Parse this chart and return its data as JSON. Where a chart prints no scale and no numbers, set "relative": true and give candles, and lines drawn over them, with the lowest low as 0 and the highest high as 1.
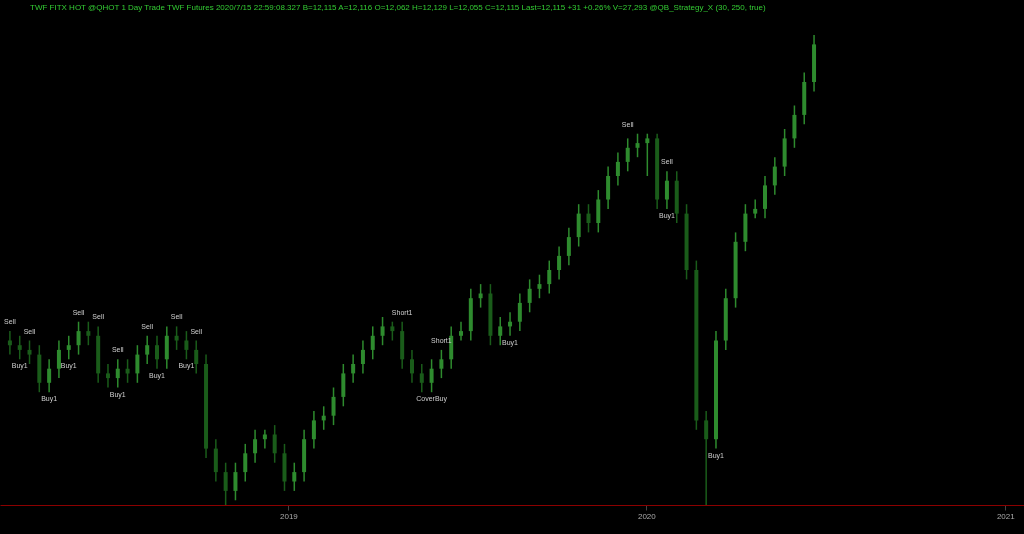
{
  "chart_data": {
    "type": "candlestick",
    "relative": true,
    "title": "TWF FITX HOT  @QHOT  1 Day  Trade  TWF  Futures  2020/7/15 22:59:08.327  B=12,115  A=12,116  O=12,062  H=12,129  L=12,055  C=12,115  Last=12,115  +31  +0.26%  V=27,293  @QB_Strategy_X (30, 250, true)",
    "colors": [
      "#1a5c1a",
      "#1a5c1a",
      "#1a5c1a",
      "#1a5c1a",
      "#2e8b2e",
      "#2e8b2e",
      "#2e8b2e",
      "#2e8b2e",
      "#1a5c1a",
      "#1a5c1a",
      "#1a5c1a",
      "#2e8b2e",
      "#1a5c1a",
      "#2e8b2e",
      "#2e8b2e",
      "#1a5c1a",
      "#2e8b2e",
      "#1a5c1a",
      "#1a5c1a",
      "#1a5c1a",
      "#1a5c1a",
      "#1a5c1a",
      "#1a5c1a",
      "#2e8b2e",
      "#2e8b2e",
      "#2e8b2e",
      "#2e8b2e",
      "#1a5c1a",
      "#1a5c1a",
      "#2e8b2e",
      "#2e8b2e",
      "#2e8b2e",
      "#2e8b2e",
      "#2e8b2e",
      "#2e8b2e",
      "#2e8b2e",
      "#2e8b2e",
      "#2e8b2e",
      "#2e8b2e",
      "#1a5c1a",
      "#1a5c1a",
      "#1a5c1a",
      "#1a5c1a",
      "#2e8b2e",
      "#2e8b2e",
      "#2e8b2e",
      "#2e8b2e",
      "#2e8b2e",
      "#2e8b2e",
      "#1a5c1a",
      "#2e8b2e",
      "#2e8b2e",
      "#2e8b2e",
      "#2e8b2e",
      "#2e8b2e",
      "#2e8b2e",
      "#2e8b2e",
      "#2e8b2e",
      "#2e8b2e",
      "#1a5c1a",
      "#2e8b2e",
      "#2e8b2e",
      "#2e8b2e",
      "#2e8b2e",
      "#2e8b2e",
      "#2e8b2e",
      "#1a5c1a",
      "#2e8b2e",
      "#1a5c1a",
      "#1a5c1a",
      "#1a5c1a",
      "#1a5c1a",
      "#2e8b2e",
      "#2e8b2e",
      "#2e8b2e",
      "#2e8b2e",
      "#2e8b2e",
      "#2e8b2e",
      "#2e8b2e",
      "#2e8b2e",
      "#2e8b2e",
      "#2e8b2e",
      "#2e8b2e"
    ],
    "xlim": [
      "2018-03-18",
      "2021-01-15"
    ],
    "xticks": [
      {
        "value": "2019-01-01",
        "label": "2019"
      },
      {
        "value": "2020-01-01",
        "label": "2020"
      },
      {
        "value": "2021-01-01",
        "label": "2021"
      }
    ],
    "x": [
      "2018-03-23",
      "2018-04-02",
      "2018-04-12",
      "2018-04-22",
      "2018-05-02",
      "2018-05-12",
      "2018-05-22",
      "2018-06-01",
      "2018-06-11",
      "2018-06-21",
      "2018-07-01",
      "2018-07-11",
      "2018-07-21",
      "2018-07-31",
      "2018-08-10",
      "2018-08-20",
      "2018-08-30",
      "2018-09-09",
      "2018-09-19",
      "2018-09-29",
      "2018-10-09",
      "2018-10-19",
      "2018-10-29",
      "2018-11-08",
      "2018-11-18",
      "2018-11-28",
      "2018-12-08",
      "2018-12-18",
      "2018-12-28",
      "2019-01-07",
      "2019-01-17",
      "2019-01-27",
      "2019-02-06",
      "2019-02-16",
      "2019-02-26",
      "2019-03-08",
      "2019-03-18",
      "2019-03-28",
      "2019-04-07",
      "2019-04-17",
      "2019-04-27",
      "2019-05-07",
      "2019-05-17",
      "2019-05-27",
      "2019-06-06",
      "2019-06-16",
      "2019-06-26",
      "2019-07-06",
      "2019-07-16",
      "2019-07-26",
      "2019-08-05",
      "2019-08-15",
      "2019-08-25",
      "2019-09-04",
      "2019-09-14",
      "2019-09-24",
      "2019-10-04",
      "2019-10-14",
      "2019-10-24",
      "2019-11-03",
      "2019-11-13",
      "2019-11-23",
      "2019-12-03",
      "2019-12-13",
      "2019-12-23",
      "2020-01-02",
      "2020-01-12",
      "2020-01-22",
      "2020-02-01",
      "2020-02-11",
      "2020-02-21",
      "2020-03-02",
      "2020-03-12",
      "2020-03-22",
      "2020-04-01",
      "2020-04-11",
      "2020-04-21",
      "2020-05-01",
      "2020-05-11",
      "2020-05-21",
      "2020-05-31",
      "2020-06-10",
      "2020-06-20"
    ],
    "ohlc": [
      [
        0.35,
        0.37,
        0.32,
        0.34
      ],
      [
        0.34,
        0.36,
        0.31,
        0.33
      ],
      [
        0.33,
        0.35,
        0.3,
        0.32
      ],
      [
        0.32,
        0.34,
        0.24,
        0.26
      ],
      [
        0.26,
        0.31,
        0.24,
        0.29
      ],
      [
        0.29,
        0.35,
        0.27,
        0.33
      ],
      [
        0.33,
        0.36,
        0.31,
        0.34
      ],
      [
        0.34,
        0.39,
        0.32,
        0.37
      ],
      [
        0.37,
        0.39,
        0.34,
        0.36
      ],
      [
        0.36,
        0.38,
        0.26,
        0.28
      ],
      [
        0.28,
        0.3,
        0.25,
        0.27
      ],
      [
        0.27,
        0.31,
        0.25,
        0.29
      ],
      [
        0.29,
        0.31,
        0.26,
        0.28
      ],
      [
        0.28,
        0.34,
        0.26,
        0.32
      ],
      [
        0.32,
        0.36,
        0.3,
        0.34
      ],
      [
        0.34,
        0.36,
        0.29,
        0.31
      ],
      [
        0.31,
        0.38,
        0.29,
        0.36
      ],
      [
        0.36,
        0.38,
        0.33,
        0.35
      ],
      [
        0.35,
        0.37,
        0.31,
        0.33
      ],
      [
        0.33,
        0.35,
        0.28,
        0.3
      ],
      [
        0.3,
        0.32,
        0.1,
        0.12
      ],
      [
        0.12,
        0.14,
        0.05,
        0.07
      ],
      [
        0.07,
        0.09,
        0.0,
        0.03
      ],
      [
        0.03,
        0.09,
        0.01,
        0.07
      ],
      [
        0.07,
        0.13,
        0.05,
        0.11
      ],
      [
        0.11,
        0.16,
        0.09,
        0.14
      ],
      [
        0.14,
        0.16,
        0.12,
        0.15
      ],
      [
        0.15,
        0.17,
        0.09,
        0.11
      ],
      [
        0.11,
        0.13,
        0.03,
        0.05
      ],
      [
        0.05,
        0.09,
        0.03,
        0.07
      ],
      [
        0.07,
        0.16,
        0.05,
        0.14
      ],
      [
        0.14,
        0.2,
        0.12,
        0.18
      ],
      [
        0.18,
        0.21,
        0.16,
        0.19
      ],
      [
        0.19,
        0.25,
        0.17,
        0.23
      ],
      [
        0.23,
        0.3,
        0.21,
        0.28
      ],
      [
        0.28,
        0.32,
        0.26,
        0.3
      ],
      [
        0.3,
        0.35,
        0.28,
        0.33
      ],
      [
        0.33,
        0.38,
        0.31,
        0.36
      ],
      [
        0.36,
        0.4,
        0.34,
        0.38
      ],
      [
        0.38,
        0.39,
        0.35,
        0.37
      ],
      [
        0.37,
        0.39,
        0.29,
        0.31
      ],
      [
        0.31,
        0.33,
        0.26,
        0.28
      ],
      [
        0.28,
        0.3,
        0.24,
        0.26
      ],
      [
        0.26,
        0.31,
        0.24,
        0.29
      ],
      [
        0.29,
        0.33,
        0.27,
        0.31
      ],
      [
        0.31,
        0.38,
        0.29,
        0.36
      ],
      [
        0.36,
        0.39,
        0.35,
        0.37
      ],
      [
        0.37,
        0.46,
        0.35,
        0.44
      ],
      [
        0.44,
        0.47,
        0.42,
        0.45
      ],
      [
        0.45,
        0.47,
        0.34,
        0.36
      ],
      [
        0.36,
        0.4,
        0.34,
        0.38
      ],
      [
        0.38,
        0.41,
        0.36,
        0.39
      ],
      [
        0.39,
        0.45,
        0.37,
        0.43
      ],
      [
        0.43,
        0.48,
        0.41,
        0.46
      ],
      [
        0.46,
        0.49,
        0.44,
        0.47
      ],
      [
        0.47,
        0.52,
        0.45,
        0.5
      ],
      [
        0.5,
        0.55,
        0.48,
        0.53
      ],
      [
        0.53,
        0.59,
        0.51,
        0.57
      ],
      [
        0.57,
        0.64,
        0.55,
        0.62
      ],
      [
        0.62,
        0.64,
        0.58,
        0.6
      ],
      [
        0.6,
        0.67,
        0.58,
        0.65
      ],
      [
        0.65,
        0.72,
        0.63,
        0.7
      ],
      [
        0.7,
        0.75,
        0.68,
        0.73
      ],
      [
        0.73,
        0.78,
        0.71,
        0.76
      ],
      [
        0.76,
        0.79,
        0.74,
        0.77
      ],
      [
        0.77,
        0.79,
        0.7,
        0.78
      ],
      [
        0.78,
        0.79,
        0.63,
        0.65
      ],
      [
        0.65,
        0.71,
        0.63,
        0.69
      ],
      [
        0.69,
        0.71,
        0.6,
        0.62
      ],
      [
        0.62,
        0.64,
        0.48,
        0.5
      ],
      [
        0.5,
        0.52,
        0.16,
        0.18
      ],
      [
        0.18,
        0.2,
        0.0,
        0.14
      ],
      [
        0.14,
        0.37,
        0.12,
        0.35
      ],
      [
        0.35,
        0.46,
        0.33,
        0.44
      ],
      [
        0.44,
        0.58,
        0.42,
        0.56
      ],
      [
        0.56,
        0.64,
        0.54,
        0.62
      ],
      [
        0.62,
        0.65,
        0.61,
        0.63
      ],
      [
        0.63,
        0.7,
        0.61,
        0.68
      ],
      [
        0.68,
        0.74,
        0.66,
        0.72
      ],
      [
        0.72,
        0.8,
        0.7,
        0.78
      ],
      [
        0.78,
        0.85,
        0.76,
        0.83
      ],
      [
        0.83,
        0.92,
        0.81,
        0.9
      ],
      [
        0.9,
        1.0,
        0.88,
        0.98
      ]
    ],
    "annotations": [
      {
        "text": "Sell",
        "x": "2018-03-23",
        "y": 0.37
      },
      {
        "text": "Sell",
        "x": "2018-04-12",
        "y": 0.35
      },
      {
        "text": "Buy1",
        "x": "2018-04-02",
        "y": 0.31
      },
      {
        "text": "Buy1",
        "x": "2018-05-02",
        "y": 0.24
      },
      {
        "text": "Sell",
        "x": "2018-06-01",
        "y": 0.39
      },
      {
        "text": "Buy1",
        "x": "2018-05-22",
        "y": 0.31
      },
      {
        "text": "Sell",
        "x": "2018-06-21",
        "y": 0.38
      },
      {
        "text": "Sell",
        "x": "2018-07-11",
        "y": 0.31
      },
      {
        "text": "Buy1",
        "x": "2018-07-11",
        "y": 0.25
      },
      {
        "text": "Sell",
        "x": "2018-08-10",
        "y": 0.36
      },
      {
        "text": "Buy1",
        "x": "2018-08-20",
        "y": 0.29
      },
      {
        "text": "Sell",
        "x": "2018-09-09",
        "y": 0.38
      },
      {
        "text": "Buy1",
        "x": "2018-09-19",
        "y": 0.31
      },
      {
        "text": "Sell",
        "x": "2018-09-29",
        "y": 0.35
      },
      {
        "text": "Short1",
        "x": "2019-04-27",
        "y": 0.39
      },
      {
        "text": "Short1",
        "x": "2019-06-06",
        "y": 0.33
      },
      {
        "text": "CoverBuy",
        "x": "2019-05-27",
        "y": 0.24
      },
      {
        "text": "Buy1",
        "x": "2019-08-15",
        "y": 0.36
      },
      {
        "text": "Sell",
        "x": "2019-12-13",
        "y": 0.79
      },
      {
        "text": "Sell",
        "x": "2020-01-22",
        "y": 0.71
      },
      {
        "text": "Buy1",
        "x": "2020-01-22",
        "y": 0.63
      },
      {
        "text": "Buy1",
        "x": "2020-03-12",
        "y": 0.12
      }
    ]
  }
}
